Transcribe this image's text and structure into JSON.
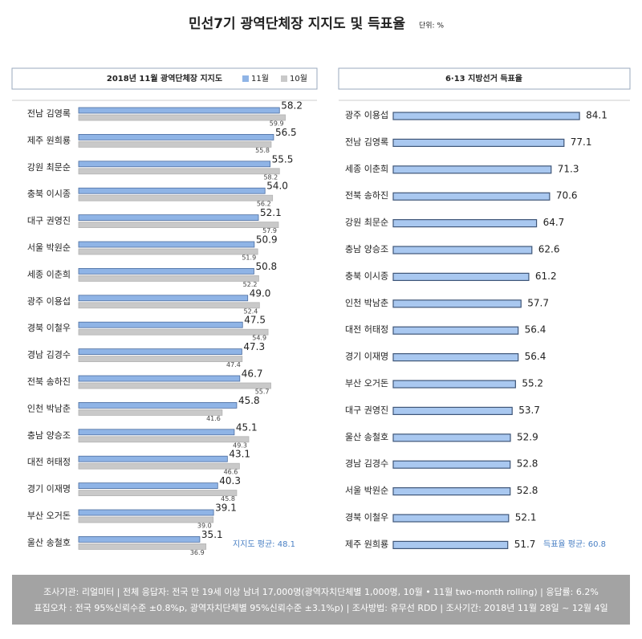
{
  "title": "민선7기 광역단체장 지지도 및 득표율",
  "unit": "단위: %",
  "footer": [
    "조사기관: 리얼미터 | 전체 응답자: 전국 만 19세 이상 남녀 17,000명(광역자치단체별 1,000명, 10월 • 11월 two-month rolling) | 응답률: 6.2%",
    "표집오차 : 전국 95%신뢰수준 ±0.8%p, 광역자치단체별 95%신뢰수준 ±3.1%p) | 조사방법: 유무선 RDD | 조사기간: 2018년 11월 28일 ~ 12월 4일"
  ],
  "chart_data": [
    {
      "type": "bar",
      "orientation": "horizontal",
      "title": "2018년 11월 광역단체장 지지도",
      "categories": [
        "전남 김영록",
        "제주 원희룡",
        "강원 최문순",
        "충북 이시종",
        "대구 권영진",
        "서울 박원순",
        "세종 이춘희",
        "광주 이용섭",
        "경북 이철우",
        "경남 김경수",
        "전북 송하진",
        "인천 박남춘",
        "충남 양승조",
        "대전 허태정",
        "경기 이재명",
        "부산 오거돈",
        "울산 송철호"
      ],
      "series": [
        {
          "name": "11월",
          "color": "#8fb4e6",
          "values": [
            58.2,
            56.5,
            55.5,
            54.0,
            52.1,
            50.9,
            50.8,
            49.0,
            47.5,
            47.3,
            46.7,
            45.8,
            45.1,
            43.1,
            40.3,
            39.1,
            35.1
          ],
          "value_labels": [
            "58.2",
            "56.5",
            "55.5",
            "54.0",
            "52.1",
            "50.9",
            "50.8",
            "49.0",
            "47.5",
            "47.3",
            "46.7",
            "45.8",
            "45.1",
            "43.1",
            "40.3",
            "39.1",
            "35.1"
          ]
        },
        {
          "name": "10월",
          "color": "#c9c9c9",
          "values": [
            59.9,
            55.8,
            58.2,
            56.2,
            57.9,
            51.9,
            52.2,
            52.4,
            54.9,
            47.4,
            55.7,
            41.6,
            49.3,
            46.6,
            45.8,
            39.0,
            36.9
          ],
          "value_labels": [
            "59.9",
            "55.8",
            "58.2",
            "56.2",
            "57.9",
            "51.9",
            "52.2",
            "52.4",
            "54.9",
            "47.4",
            "55.7",
            "41.6",
            "49.3",
            "46.6",
            "45.8",
            "39.0",
            "36.9"
          ]
        }
      ],
      "annotation": "지지도 평균: 48.1"
    },
    {
      "type": "bar",
      "orientation": "horizontal",
      "title": "6·13 지방선거 득표율",
      "categories": [
        "광주 이용섭",
        "전남 김영록",
        "세종 이춘희",
        "전북 송하진",
        "강원 최문순",
        "충남 양승조",
        "충북 이시종",
        "인천 박남춘",
        "대전 허태정",
        "경기 이재명",
        "부산 오거돈",
        "대구 권영진",
        "울산 송철호",
        "경남 김경수",
        "서울 박원순",
        "경북 이철우",
        "제주 원희룡"
      ],
      "series": [
        {
          "name": "득표율",
          "color": "#a9c8f0",
          "values": [
            84.1,
            77.1,
            71.3,
            70.6,
            64.7,
            62.6,
            61.2,
            57.7,
            56.4,
            56.4,
            55.2,
            53.7,
            52.9,
            52.8,
            52.8,
            52.1,
            51.7
          ]
        }
      ],
      "annotation": "득표율 평균: 60.8"
    }
  ]
}
